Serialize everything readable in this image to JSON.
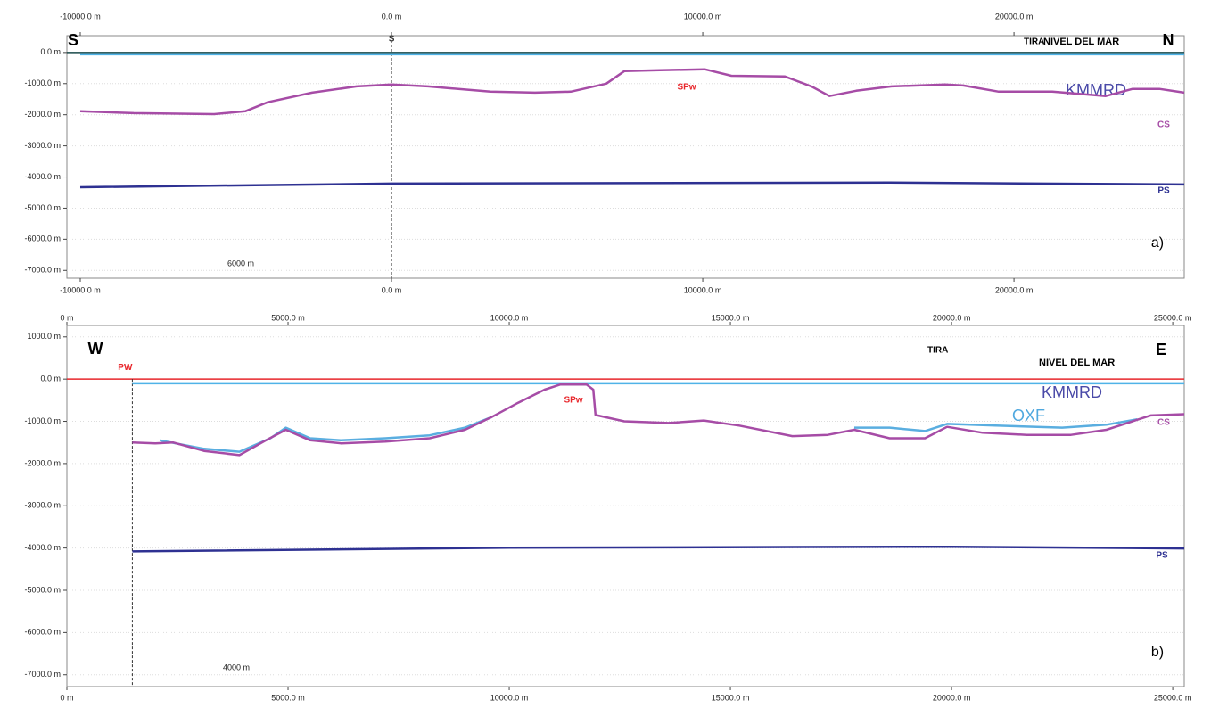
{
  "chart_data": [
    {
      "type": "line",
      "xlim": [
        -10430,
        25470
      ],
      "ylim": [
        -7250,
        540
      ],
      "xticks": [
        {
          "value": -10000,
          "label": "-10000.0 m"
        },
        {
          "value": 0,
          "label": "0.0 m"
        },
        {
          "value": 10000,
          "label": "10000.0 m"
        },
        {
          "value": 20000,
          "label": "20000.0 m"
        }
      ],
      "yticks": [
        {
          "value": 0,
          "label": "0.0 m"
        },
        {
          "value": -1000,
          "label": "-1000.0 m"
        },
        {
          "value": -2000,
          "label": "-2000.0 m"
        },
        {
          "value": -3000,
          "label": "-3000.0 m"
        },
        {
          "value": -4000,
          "label": "-4000.0 m"
        },
        {
          "value": -5000,
          "label": "-5000.0 m"
        },
        {
          "value": -6000,
          "label": "-6000.0 m"
        },
        {
          "value": -7000,
          "label": "-7000.0 m"
        }
      ],
      "grid": true,
      "series": [
        {
          "name": "KMMRD",
          "color": "#4fb3e8",
          "x": [
            -10000,
            25470
          ],
          "values": [
            -60,
            -60
          ]
        },
        {
          "name": "CS",
          "color": "#a64ca6",
          "x": [
            -10000,
            -8280,
            -5700,
            -4700,
            -3980,
            -2550,
            -1120,
            0,
            1170,
            3180,
            4610,
            5760,
            6900,
            7480,
            8620,
            10060,
            10920,
            12630,
            13490,
            14070,
            14930,
            16070,
            17790,
            18370,
            19510,
            21230,
            22950,
            23810,
            24670,
            25470
          ],
          "values": [
            -1890,
            -1950,
            -1980,
            -1890,
            -1600,
            -1290,
            -1090,
            -1030,
            -1090,
            -1260,
            -1290,
            -1260,
            -1000,
            -600,
            -570,
            -540,
            -750,
            -770,
            -1090,
            -1400,
            -1230,
            -1090,
            -1030,
            -1060,
            -1260,
            -1260,
            -1400,
            -1170,
            -1170,
            -1290
          ]
        },
        {
          "name": "PS",
          "color": "#2e3192",
          "x": [
            -10000,
            0,
            16000,
            25470
          ],
          "values": [
            -4330,
            -4210,
            -4180,
            -4240
          ]
        }
      ],
      "wells": [
        {
          "label": "S",
          "x": 0
        }
      ],
      "annotations": [
        "S",
        "N",
        "TIRA",
        "NIVEL DEL MAR",
        "SPw",
        "a)"
      ],
      "scale_bar": "6000 m"
    },
    {
      "type": "line",
      "xlim": [
        0,
        25260
      ],
      "ylim": [
        -7280,
        1270
      ],
      "xticks": [
        {
          "value": 0,
          "label": "0 m"
        },
        {
          "value": 5000,
          "label": "5000.0 m"
        },
        {
          "value": 10000,
          "label": "10000.0 m"
        },
        {
          "value": 15000,
          "label": "15000.0 m"
        },
        {
          "value": 20000,
          "label": "20000.0 m"
        },
        {
          "value": 25000,
          "label": "25000.0 m"
        }
      ],
      "yticks": [
        {
          "value": 1000,
          "label": "1000.0 m"
        },
        {
          "value": 0,
          "label": "0.0 m"
        },
        {
          "value": -1000,
          "label": "-1000.0 m"
        },
        {
          "value": -2000,
          "label": "-2000.0 m"
        },
        {
          "value": -3000,
          "label": "-3000.0 m"
        },
        {
          "value": -4000,
          "label": "-4000.0 m"
        },
        {
          "value": -5000,
          "label": "-5000.0 m"
        },
        {
          "value": -6000,
          "label": "-6000.0 m"
        },
        {
          "value": -7000,
          "label": "-7000.0 m"
        }
      ],
      "grid": true,
      "series": [
        {
          "name": "KMMRD",
          "color": "#4fb3e8",
          "x": [
            1480,
            25260
          ],
          "values": [
            -100,
            -100
          ]
        },
        {
          "name": "OXF",
          "color": "#5aaee0",
          "x": [
            2100,
            3100,
            3900,
            4600,
            4950,
            5500,
            6200,
            7200,
            8200,
            9000,
            9600,
            13000,
            17800,
            18600,
            19400,
            19900,
            21000,
            22500,
            23500,
            24200
          ],
          "values": [
            -1450,
            -1650,
            -1720,
            -1400,
            -1150,
            -1400,
            -1450,
            -1400,
            -1330,
            -1150,
            -900,
            null,
            -1150,
            -1150,
            -1230,
            -1060,
            -1100,
            -1150,
            -1080,
            -950
          ]
        },
        {
          "name": "CS",
          "color": "#a64ca6",
          "x": [
            1480,
            2000,
            2400,
            3100,
            3900,
            4500,
            4950,
            5500,
            6200,
            7200,
            8200,
            9000,
            9600,
            10200,
            10800,
            11150,
            11750,
            11900,
            11950,
            12600,
            13600,
            14400,
            15200,
            16400,
            17200,
            17800,
            18600,
            19400,
            19900,
            20700,
            21700,
            22700,
            23500,
            24500,
            25260
          ],
          "values": [
            -1500,
            -1520,
            -1500,
            -1700,
            -1800,
            -1450,
            -1200,
            -1450,
            -1520,
            -1480,
            -1400,
            -1200,
            -900,
            -560,
            -250,
            -130,
            -130,
            -250,
            -850,
            -1000,
            -1040,
            -980,
            -1100,
            -1350,
            -1320,
            -1200,
            -1400,
            -1400,
            -1130,
            -1270,
            -1320,
            -1320,
            -1200,
            -860,
            -830
          ]
        },
        {
          "name": "PS",
          "color": "#2e3192",
          "x": [
            1480,
            10000,
            20000,
            25260
          ],
          "values": [
            -4080,
            -3990,
            -3970,
            -4010
          ]
        }
      ],
      "wells": [
        {
          "label": "PW",
          "x": 1480
        }
      ],
      "annotations": [
        "W",
        "E",
        "TIRA",
        "NIVEL DEL MAR",
        "SPw",
        "b)"
      ],
      "scale_bar": "4000 m"
    }
  ]
}
